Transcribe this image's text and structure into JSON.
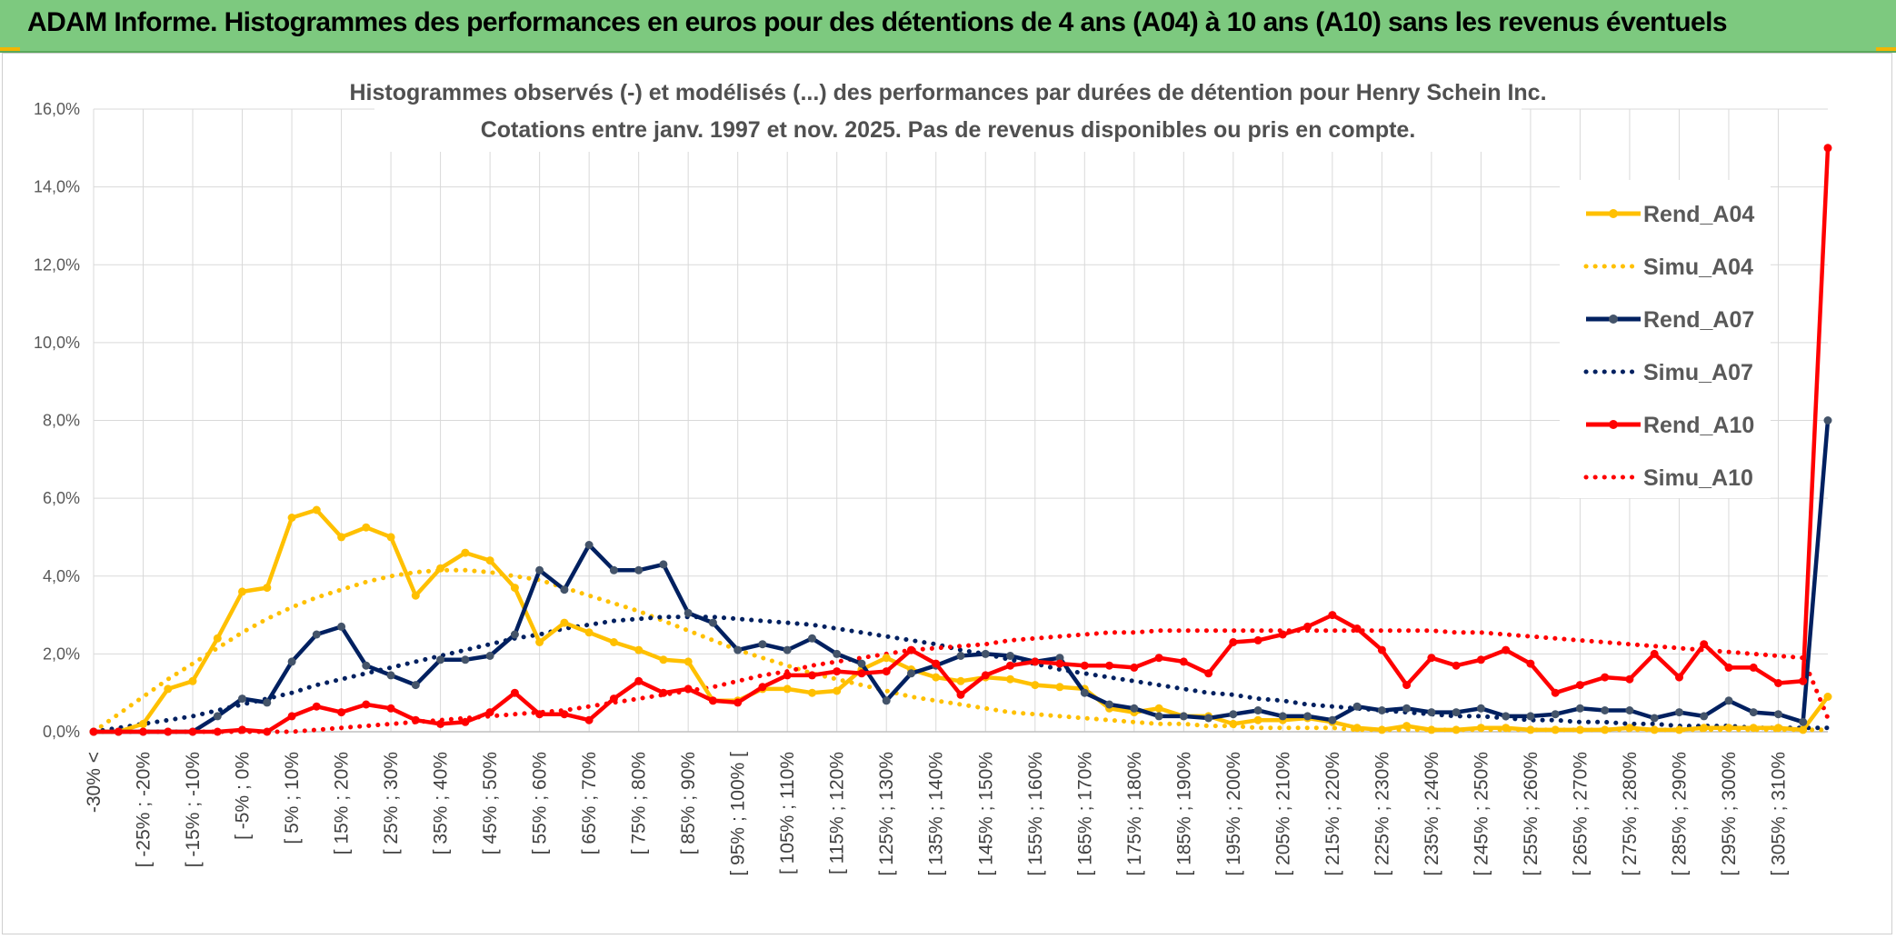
{
  "banner": {
    "title": "ADAM Informe. Histogrammes des performances en euros pour des détentions de 4 ans (A04) à 10 ans (A10) sans les revenus éventuels"
  },
  "colors": {
    "A04": "#ffc000",
    "A07": "#002060",
    "A10": "#ff0000",
    "A07_marker": "#44546a"
  },
  "chart_data": {
    "type": "line",
    "title": "Histogrammes observés (-) et modélisés (...) des performances par durées de détention pour Henry Schein Inc.",
    "subtitle": "Cotations entre janv. 1997 et nov. 2025. Pas de revenus disponibles ou pris en compte.",
    "ylim": [
      0,
      16
    ],
    "yticks": [
      "0,0%",
      "2,0%",
      "4,0%",
      "6,0%",
      "8,0%",
      "10,0%",
      "12,0%",
      "14,0%",
      "16,0%"
    ],
    "grid": true,
    "legend_position": "right",
    "x_labels": [
      "-30% <",
      "[ -25% ; -20%",
      "[ -15% ; -10%",
      "[ -5% ; 0%",
      "[ 5% ; 10%",
      "[ 15% ; 20%",
      "[ 25% ; 30%",
      "[ 35% ; 40%",
      "[ 45% ; 50%",
      "[ 55% ; 60%",
      "[ 65% ; 70%",
      "[ 75% ; 80%",
      "[ 85% ; 90%",
      "[ 95% ; 100% [",
      "[ 105% ; 110%",
      "[ 115% ; 120%",
      "[ 125% ; 130%",
      "[ 135% ; 140%",
      "[ 145% ; 150%",
      "[ 155% ; 160%",
      "[ 165% ; 170%",
      "[ 175% ; 180%",
      "[ 185% ; 190%",
      "[ 195% ; 200%",
      "[ 205% ; 210%",
      "[ 215% ; 220%",
      "[ 225% ; 230%",
      "[ 235% ; 240%",
      "[ 245% ; 250%",
      "[ 255% ; 260%",
      "[ 265% ; 270%",
      "[ 275% ; 280%",
      "[ 285% ; 290%",
      "[ 295% ; 300%",
      "[ 305% ; 310%"
    ],
    "series": [
      {
        "name": "Rend_A04",
        "style": "solid",
        "color": "#ffc000",
        "values": [
          0,
          0,
          0.2,
          1.1,
          1.3,
          2.4,
          3.6,
          3.7,
          5.5,
          5.7,
          5.0,
          5.25,
          5.0,
          3.5,
          4.2,
          4.6,
          4.4,
          3.7,
          2.3,
          2.8,
          2.55,
          2.3,
          2.1,
          1.85,
          1.8,
          0.8,
          0.8,
          1.1,
          1.1,
          1.0,
          1.05,
          1.6,
          1.9,
          1.6,
          1.4,
          1.3,
          1.4,
          1.35,
          1.2,
          1.15,
          1.1,
          0.6,
          0.5,
          0.6,
          0.4,
          0.4,
          0.2,
          0.3,
          0.3,
          0.35,
          0.25,
          0.1,
          0.05,
          0.15,
          0.05,
          0.05,
          0.1,
          0.1,
          0.05,
          0.05,
          0.05,
          0.05,
          0.1,
          0.05,
          0.05,
          0.1,
          0.1,
          0.1,
          0.1,
          0.05,
          0.9
        ]
      },
      {
        "name": "Simu_A04",
        "style": "dotted",
        "color": "#ffc000",
        "values": [
          0,
          0.45,
          0.9,
          1.35,
          1.75,
          2.15,
          2.55,
          2.9,
          3.2,
          3.45,
          3.65,
          3.85,
          4.0,
          4.1,
          4.15,
          4.15,
          4.1,
          4.0,
          3.9,
          3.7,
          3.5,
          3.3,
          3.1,
          2.85,
          2.6,
          2.35,
          2.1,
          1.9,
          1.7,
          1.5,
          1.35,
          1.2,
          1.05,
          0.9,
          0.8,
          0.7,
          0.6,
          0.5,
          0.45,
          0.4,
          0.35,
          0.3,
          0.25,
          0.2,
          0.2,
          0.15,
          0.15,
          0.1,
          0.1,
          0.1,
          0.1,
          0.05,
          0.05,
          0.05,
          0.05,
          0.05,
          0.05,
          0.05,
          0.05,
          0.05,
          0.05,
          0.05,
          0.05,
          0.05,
          0.05,
          0.05,
          0.05,
          0.05,
          0.05,
          0.05,
          0.05
        ]
      },
      {
        "name": "Rend_A07",
        "style": "solid",
        "color": "#002060",
        "values": [
          0,
          0,
          0,
          0,
          0,
          0.4,
          0.85,
          0.75,
          1.8,
          2.5,
          2.7,
          1.7,
          1.45,
          1.2,
          1.85,
          1.85,
          1.95,
          2.5,
          4.15,
          3.65,
          4.8,
          4.15,
          4.15,
          4.3,
          3.05,
          2.8,
          2.1,
          2.25,
          2.1,
          2.4,
          2.0,
          1.75,
          0.8,
          1.5,
          1.7,
          1.95,
          2.0,
          1.95,
          1.8,
          1.9,
          1.0,
          0.7,
          0.6,
          0.4,
          0.4,
          0.35,
          0.45,
          0.55,
          0.4,
          0.4,
          0.3,
          0.65,
          0.55,
          0.6,
          0.5,
          0.5,
          0.6,
          0.4,
          0.4,
          0.45,
          0.6,
          0.55,
          0.55,
          0.35,
          0.5,
          0.4,
          0.8,
          0.5,
          0.45,
          0.25,
          8.0
        ]
      },
      {
        "name": "Simu_A07",
        "style": "dotted",
        "color": "#002060",
        "values": [
          0,
          0.1,
          0.2,
          0.3,
          0.4,
          0.55,
          0.7,
          0.85,
          1.0,
          1.2,
          1.35,
          1.5,
          1.65,
          1.8,
          1.95,
          2.1,
          2.25,
          2.4,
          2.5,
          2.65,
          2.75,
          2.85,
          2.9,
          2.95,
          2.95,
          2.95,
          2.9,
          2.85,
          2.8,
          2.75,
          2.65,
          2.55,
          2.45,
          2.35,
          2.25,
          2.1,
          2.0,
          1.85,
          1.75,
          1.6,
          1.5,
          1.4,
          1.3,
          1.2,
          1.1,
          1.0,
          0.95,
          0.85,
          0.8,
          0.7,
          0.65,
          0.6,
          0.55,
          0.5,
          0.45,
          0.4,
          0.4,
          0.35,
          0.3,
          0.3,
          0.25,
          0.25,
          0.2,
          0.2,
          0.15,
          0.15,
          0.15,
          0.1,
          0.1,
          0.1,
          0.1
        ]
      },
      {
        "name": "Rend_A10",
        "style": "solid",
        "color": "#ff0000",
        "values": [
          0,
          0,
          0,
          0,
          0,
          0,
          0.05,
          0,
          0.4,
          0.65,
          0.5,
          0.7,
          0.6,
          0.3,
          0.2,
          0.25,
          0.5,
          1.0,
          0.45,
          0.45,
          0.3,
          0.85,
          1.3,
          1.0,
          1.1,
          0.8,
          0.75,
          1.15,
          1.45,
          1.45,
          1.55,
          1.5,
          1.55,
          2.1,
          1.75,
          0.95,
          1.45,
          1.7,
          1.8,
          1.75,
          1.7,
          1.7,
          1.65,
          1.9,
          1.8,
          1.5,
          2.3,
          2.35,
          2.5,
          2.7,
          3.0,
          2.65,
          2.1,
          1.2,
          1.9,
          1.7,
          1.85,
          2.1,
          1.75,
          1.0,
          1.2,
          1.4,
          1.35,
          2.0,
          1.4,
          2.25,
          1.65,
          1.65,
          1.25,
          1.3,
          15.0
        ]
      },
      {
        "name": "Simu_A10",
        "style": "dotted",
        "color": "#ff0000",
        "values": [
          0,
          0,
          0,
          0,
          0,
          0,
          0,
          0,
          0,
          0.05,
          0.1,
          0.15,
          0.2,
          0.25,
          0.3,
          0.35,
          0.4,
          0.45,
          0.5,
          0.55,
          0.65,
          0.75,
          0.85,
          0.95,
          1.05,
          1.15,
          1.3,
          1.45,
          1.55,
          1.7,
          1.8,
          1.9,
          2.0,
          2.1,
          2.15,
          2.2,
          2.25,
          2.35,
          2.4,
          2.45,
          2.5,
          2.55,
          2.55,
          2.6,
          2.6,
          2.6,
          2.6,
          2.6,
          2.6,
          2.6,
          2.6,
          2.6,
          2.6,
          2.6,
          2.6,
          2.55,
          2.55,
          2.5,
          2.45,
          2.4,
          2.35,
          2.3,
          2.25,
          2.2,
          2.15,
          2.1,
          2.05,
          2.0,
          1.95,
          1.9,
          0.35
        ]
      }
    ]
  }
}
